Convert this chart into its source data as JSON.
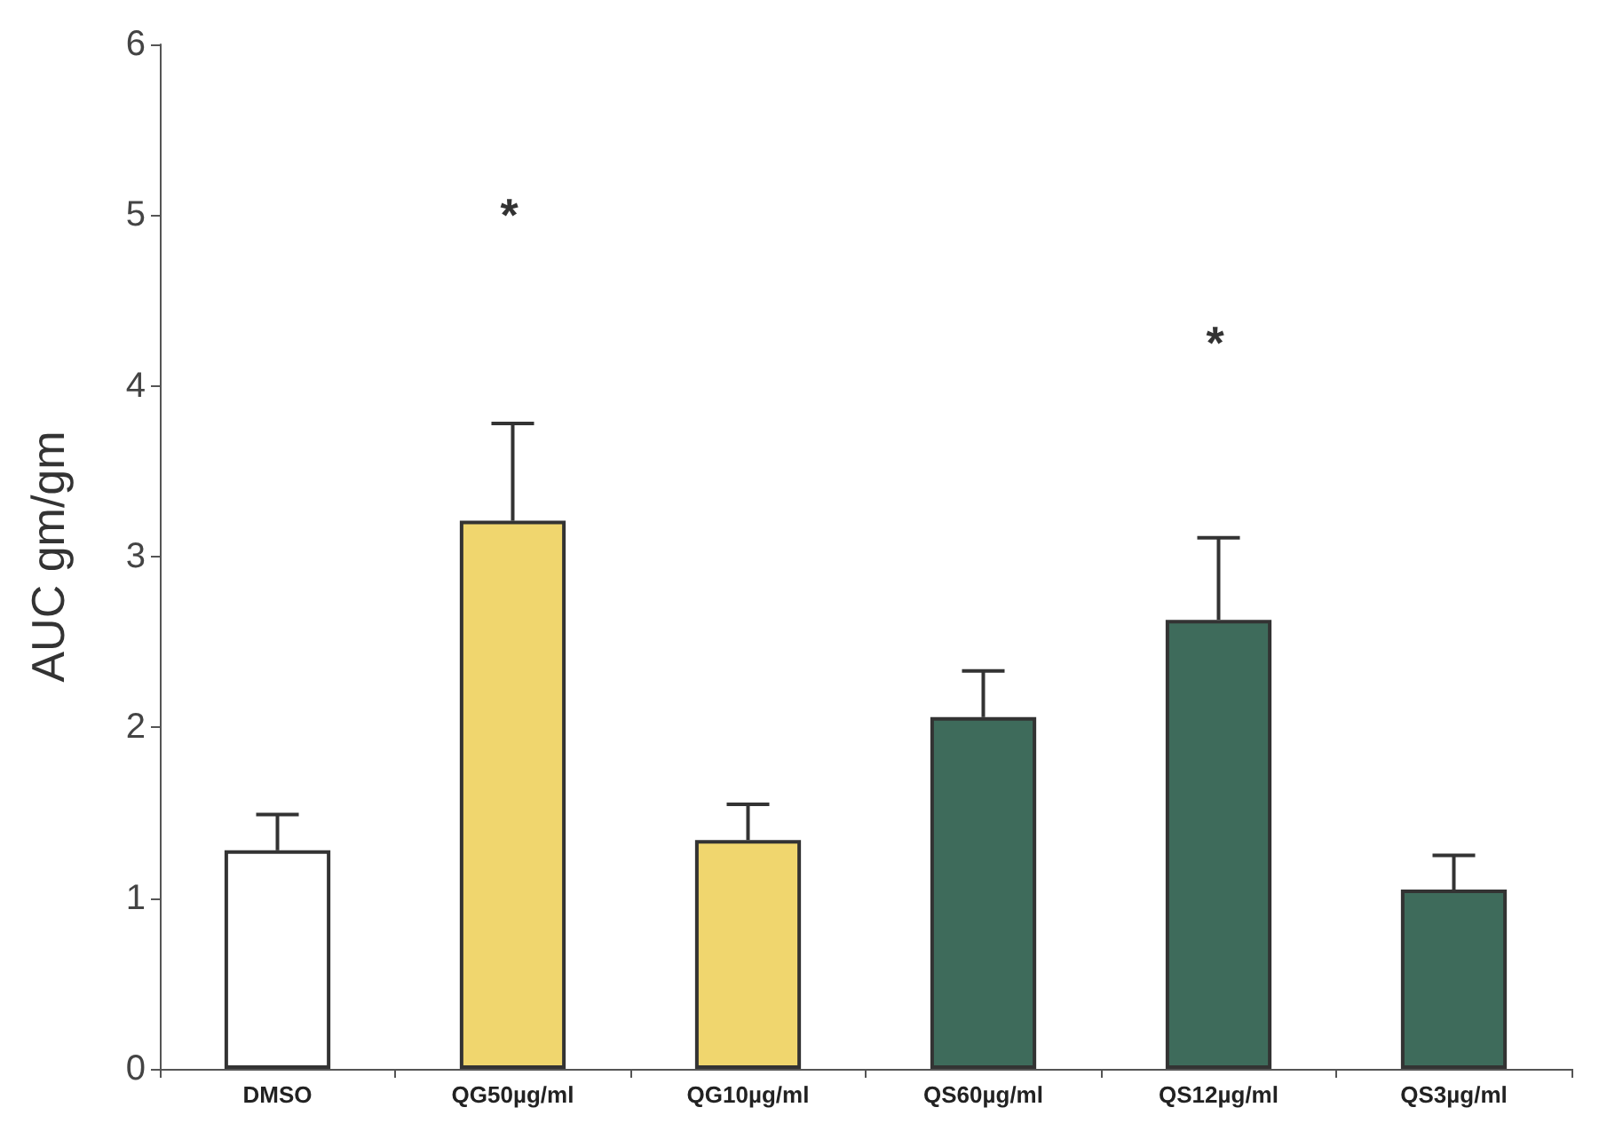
{
  "chart_data": {
    "type": "bar",
    "ylabel": "AUC gm/gm",
    "categories": [
      "DMSO",
      "QG50µg/ml",
      "QG10µg/ml",
      "QS60µg/ml",
      "QS12µg/ml",
      "QS3µg/ml"
    ],
    "values": [
      1.28,
      3.21,
      1.34,
      2.06,
      2.63,
      1.05
    ],
    "colors": [
      "#ffffff",
      "#f0d66e",
      "#f0d66e",
      "#3e6b5b",
      "#3e6b5b",
      "#3e6b5b"
    ],
    "errors": [
      [
        1.28,
        1.49
      ],
      [
        3.21,
        3.78
      ],
      [
        1.34,
        1.55
      ],
      [
        2.06,
        2.33
      ],
      [
        2.63,
        3.11
      ],
      [
        1.05,
        1.25
      ]
    ],
    "ylim": [
      0,
      6
    ],
    "yticks": [
      0,
      1,
      2,
      3,
      4,
      5,
      6
    ],
    "grid": false,
    "annotations": [
      "*",
      "*"
    ]
  }
}
